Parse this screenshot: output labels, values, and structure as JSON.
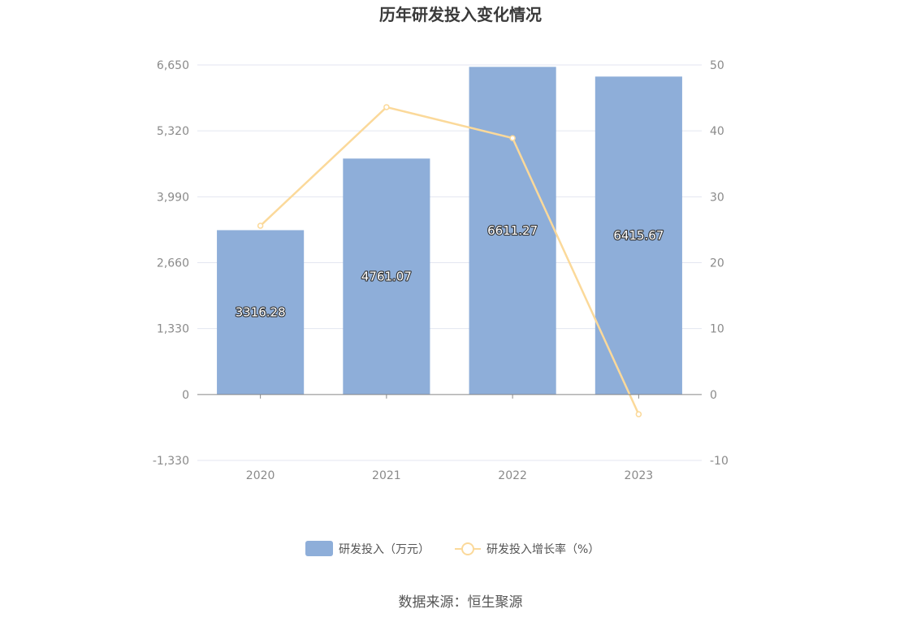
{
  "chart_data": {
    "type": "bar",
    "title": "历年研发投入变化情况",
    "categories": [
      "2020",
      "2021",
      "2022",
      "2023"
    ],
    "series": [
      {
        "name": "研发投入（万元）",
        "type": "bar",
        "axis": "left",
        "values": [
          3316.28,
          4761.07,
          6611.27,
          6415.67
        ],
        "labels": [
          "3316.28",
          "4761.07",
          "6611.27",
          "6415.67"
        ],
        "color": "#8eaed9"
      },
      {
        "name": "研发投入增长率（%）",
        "type": "line",
        "axis": "right",
        "values": [
          25.6,
          43.6,
          38.9,
          -3.0
        ],
        "color": "#fbd99a"
      }
    ],
    "y_left": {
      "ylim": [
        -1330,
        6650
      ],
      "ticks": [
        "-1,330",
        "0",
        "1,330",
        "2,660",
        "3,990",
        "5,320",
        "6,650"
      ],
      "tick_values": [
        -1330,
        0,
        1330,
        2660,
        3990,
        5320,
        6650
      ]
    },
    "y_right": {
      "ylim": [
        -10,
        50
      ],
      "ticks": [
        "-10",
        "0",
        "10",
        "20",
        "30",
        "40",
        "50"
      ],
      "tick_values": [
        -10,
        0,
        10,
        20,
        30,
        40,
        50
      ]
    },
    "grid": true,
    "legend_position": "bottom"
  },
  "footer": {
    "source": "数据来源：恒生聚源"
  },
  "colors": {
    "grid": "#e3e6f0",
    "axis": "#888888"
  }
}
